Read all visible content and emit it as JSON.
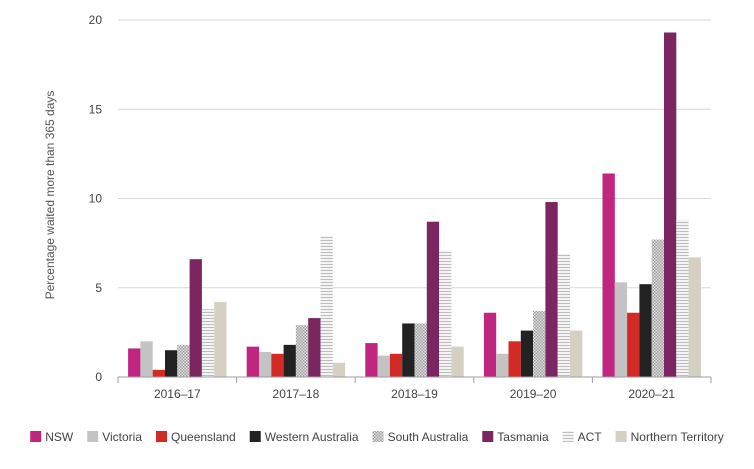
{
  "chart_data": {
    "type": "bar",
    "title": "",
    "xlabel": "",
    "ylabel": "Percentage waited more than 365 days",
    "ylim": [
      0,
      20
    ],
    "yticks": [
      0,
      5,
      10,
      15,
      20
    ],
    "grid": true,
    "legend_position": "bottom",
    "categories": [
      "2016–17",
      "2017–18",
      "2018–19",
      "2019–20",
      "2020–21"
    ],
    "series": [
      {
        "name": "NSW",
        "color": "#c0257f",
        "pattern": "solid",
        "values": [
          1.6,
          1.7,
          1.9,
          3.6,
          11.4
        ]
      },
      {
        "name": "Victoria",
        "color": "#c3c3c3",
        "pattern": "solid",
        "values": [
          2.0,
          1.4,
          1.2,
          1.3,
          5.3
        ]
      },
      {
        "name": "Queensland",
        "color": "#d42a26",
        "pattern": "solid",
        "values": [
          0.4,
          1.3,
          1.3,
          2.0,
          3.6
        ]
      },
      {
        "name": "Western Australia",
        "color": "#222222",
        "pattern": "solid",
        "values": [
          1.5,
          1.8,
          3.0,
          2.6,
          5.2
        ]
      },
      {
        "name": "South Australia",
        "color": "#bdbdbd",
        "pattern": "dots",
        "values": [
          1.8,
          2.9,
          3.0,
          3.7,
          7.7
        ]
      },
      {
        "name": "Tasmania",
        "color": "#7b2660",
        "pattern": "solid",
        "values": [
          6.6,
          3.3,
          8.7,
          9.8,
          19.3
        ]
      },
      {
        "name": "ACT",
        "color": "#cfcfcf",
        "pattern": "hlines",
        "values": [
          3.8,
          7.9,
          7.1,
          6.9,
          8.8
        ]
      },
      {
        "name": "Northern Territory",
        "color": "#d6d0c2",
        "pattern": "solid",
        "values": [
          4.2,
          0.8,
          1.7,
          2.6,
          6.7
        ]
      }
    ]
  }
}
